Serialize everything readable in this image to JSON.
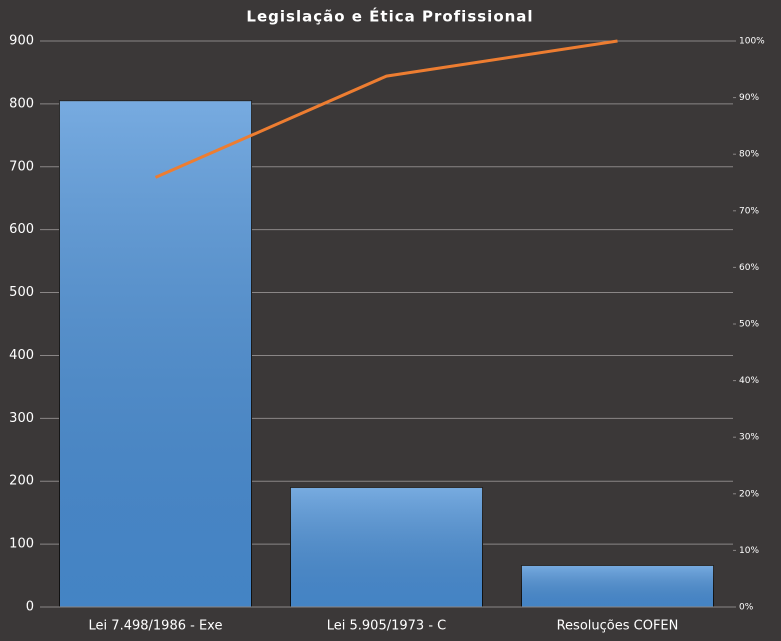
{
  "chart_data": {
    "type": "pareto",
    "title": "Legislação e Ética Profissional",
    "categories": [
      "Lei 7.498/1986 - Exe",
      "Lei 5.905/1973 - C",
      "Resoluções COFEN"
    ],
    "series": [
      {
        "type": "bar",
        "color": "#4a8fd6",
        "values": [
          805,
          190,
          66
        ]
      },
      {
        "type": "line",
        "axis": "y2",
        "color": "#ed7d31",
        "values": [
          75.9,
          93.8,
          100
        ]
      }
    ],
    "ylim": [
      0,
      900
    ],
    "yticks": [
      0,
      100,
      200,
      300,
      400,
      500,
      600,
      700,
      800,
      900
    ],
    "y2lim": [
      0,
      100
    ],
    "y2ticks": [
      {
        "value": 0,
        "label": "0%"
      },
      {
        "value": 10,
        "label": "10%"
      },
      {
        "value": 20,
        "label": "20%"
      },
      {
        "value": 30,
        "label": "30%"
      },
      {
        "value": 40,
        "label": "40%"
      },
      {
        "value": 50,
        "label": "50%"
      },
      {
        "value": 60,
        "label": "60%"
      },
      {
        "value": 70,
        "label": "70%"
      },
      {
        "value": 80,
        "label": "80%"
      },
      {
        "value": 90,
        "label": "90%"
      },
      {
        "value": 100,
        "label": "100%"
      }
    ],
    "grid": true
  }
}
